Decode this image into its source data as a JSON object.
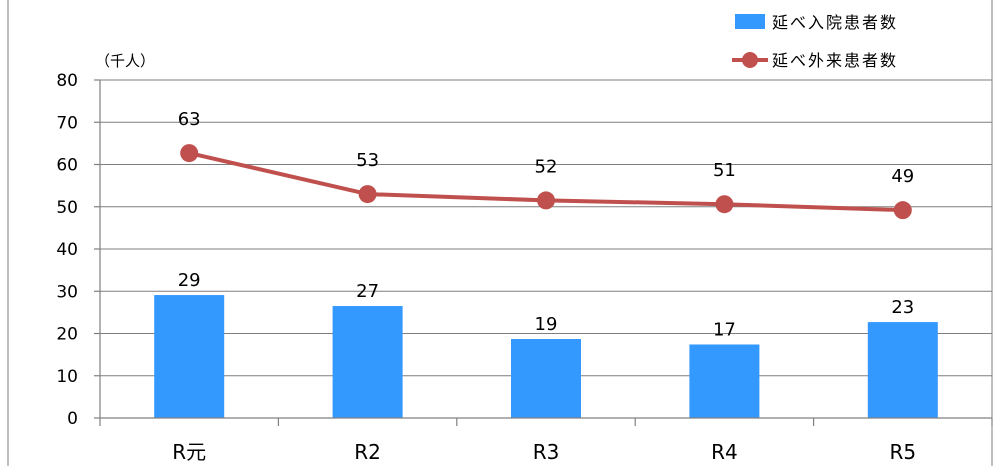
{
  "chart_data": {
    "type": "bar",
    "title": "",
    "unit_label": "（千人）",
    "categories": [
      "R元",
      "R2",
      "R3",
      "R4",
      "R5"
    ],
    "ylim": [
      0,
      80
    ],
    "yticks": [
      0,
      10,
      20,
      30,
      40,
      50,
      60,
      70,
      80
    ],
    "grid": true,
    "legend_position": "top-right",
    "series": [
      {
        "name": "延べ入院患者数",
        "type": "bar",
        "color": "#3399ff",
        "values": [
          29.1,
          26.5,
          18.7,
          17.4,
          22.7
        ],
        "labels": [
          "29",
          "27",
          "19",
          "17",
          "23"
        ]
      },
      {
        "name": "延べ外来患者数",
        "type": "line",
        "color": "#c0504d",
        "values": [
          62.7,
          53.0,
          51.5,
          50.6,
          49.2
        ],
        "labels": [
          "63",
          "53",
          "52",
          "51",
          "49"
        ]
      }
    ]
  }
}
